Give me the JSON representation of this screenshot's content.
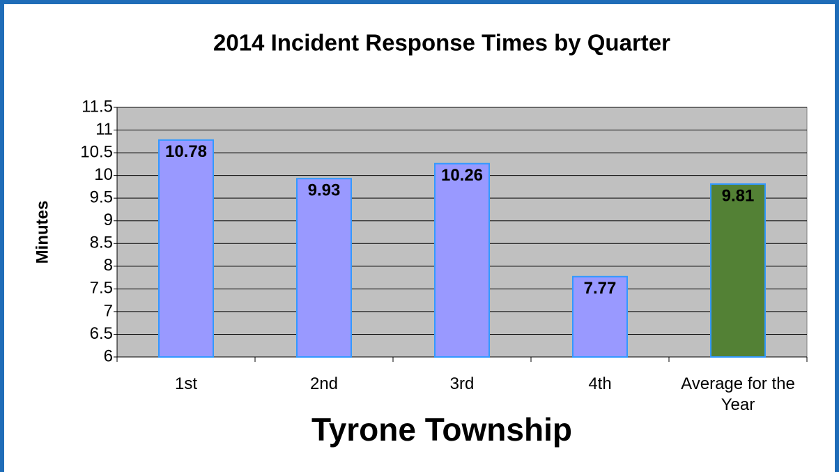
{
  "chart_data": {
    "type": "bar",
    "title": "2014 Incident Response Times by Quarter",
    "x_label": "Tyrone Township",
    "y_label": "Minutes",
    "categories": [
      "1st",
      "2nd",
      "3rd",
      "4th",
      "Average for the Year"
    ],
    "values": [
      10.78,
      9.93,
      10.26,
      7.77,
      9.81
    ],
    "colors": [
      "#9999ff",
      "#9999ff",
      "#9999ff",
      "#9999ff",
      "#538135"
    ],
    "ylim": [
      6,
      11.5
    ],
    "yticks": [
      6,
      6.5,
      7,
      7.5,
      8,
      8.5,
      9,
      9.5,
      10,
      10.5,
      11,
      11.5
    ],
    "grid": true
  }
}
